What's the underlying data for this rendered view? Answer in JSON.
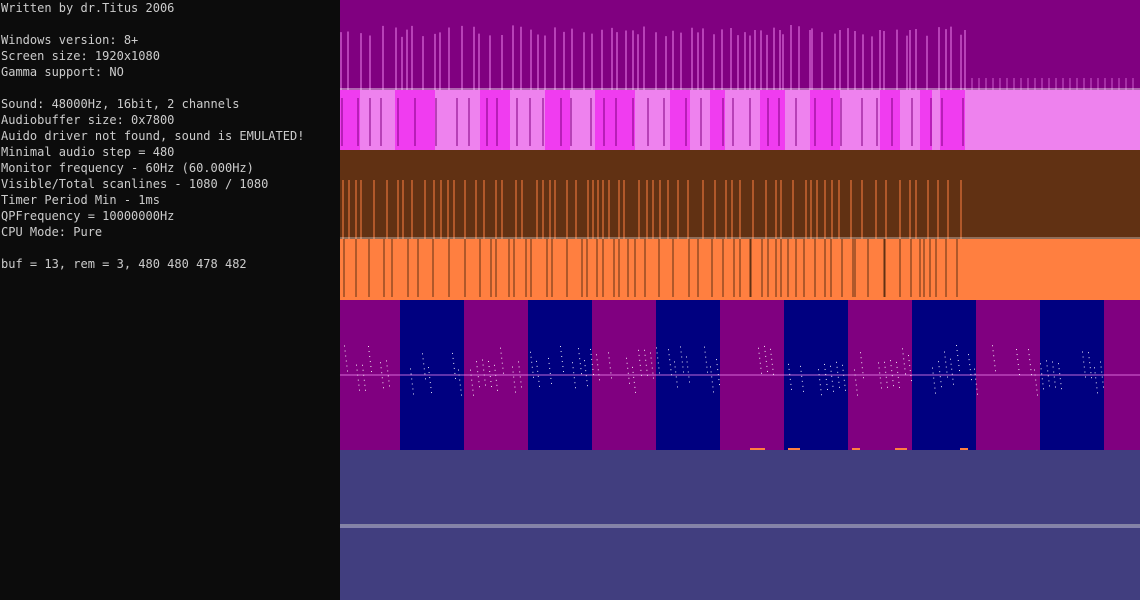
{
  "console": {
    "lines": [
      "Written by dr.Titus 2006",
      "",
      "Windows version: 8+",
      "Screen size: 1920x1080",
      "Gamma support: NO",
      "",
      "Sound: 48000Hz, 16bit, 2 channels",
      "Audiobuffer size: 0x7800",
      "Auido driver not found, sound is EMULATED!",
      "Minimal audio step = 480",
      "Monitor frequency - 60Hz (60.000Hz)",
      "Visible/Total scanlines - 1080 / 1080",
      "Timer Period Min - 1ms",
      "QPFrequency = 10000000Hz",
      "CPU Mode: Pure",
      "",
      "buf = 13, rem = 3, 480 480 478 482"
    ]
  },
  "colors": {
    "console_bg": "#0c0c0c",
    "console_text": "#cccccc",
    "purple": "#800080",
    "pink": "#ee82ee",
    "magenta": "#f03cf0",
    "brown": "#613113",
    "orange": "#ff7f40",
    "navy": "#000080",
    "slate": "#413e7f"
  }
}
